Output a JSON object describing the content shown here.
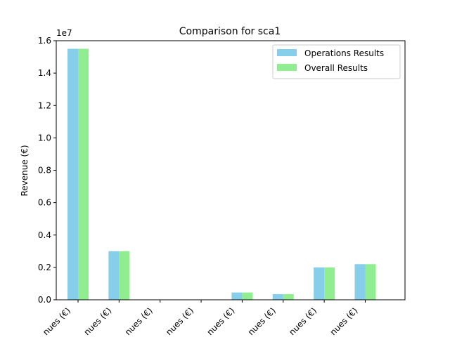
{
  "chart_data": {
    "type": "bar",
    "title": "Comparison for sca1",
    "xlabel": "",
    "ylabel": "Revenue (€)",
    "y_offset_label": "1e7",
    "ylim": [
      0,
      16000000
    ],
    "yticks": [
      0,
      2000000,
      4000000,
      6000000,
      8000000,
      10000000,
      12000000,
      14000000,
      16000000
    ],
    "ytick_labels": [
      "0.0",
      "0.2",
      "0.4",
      "0.6",
      "0.8",
      "1.0",
      "1.2",
      "1.4",
      "1.6"
    ],
    "categories": [
      "nues (€)",
      "nues (€)",
      "nues (€)",
      "nues (€)",
      "nues (€)",
      "nues (€)",
      "nues (€)",
      "nues (€)"
    ],
    "series": [
      {
        "name": "Operations Results",
        "color": "#87CEEB",
        "values": [
          15500000,
          3000000,
          0,
          0,
          450000,
          350000,
          2000000,
          2200000
        ]
      },
      {
        "name": "Overall Results",
        "color": "#90EE90",
        "values": [
          15500000,
          3000000,
          0,
          0,
          450000,
          350000,
          2000000,
          2200000
        ]
      }
    ],
    "legend_position": "top-right",
    "grid": false
  }
}
